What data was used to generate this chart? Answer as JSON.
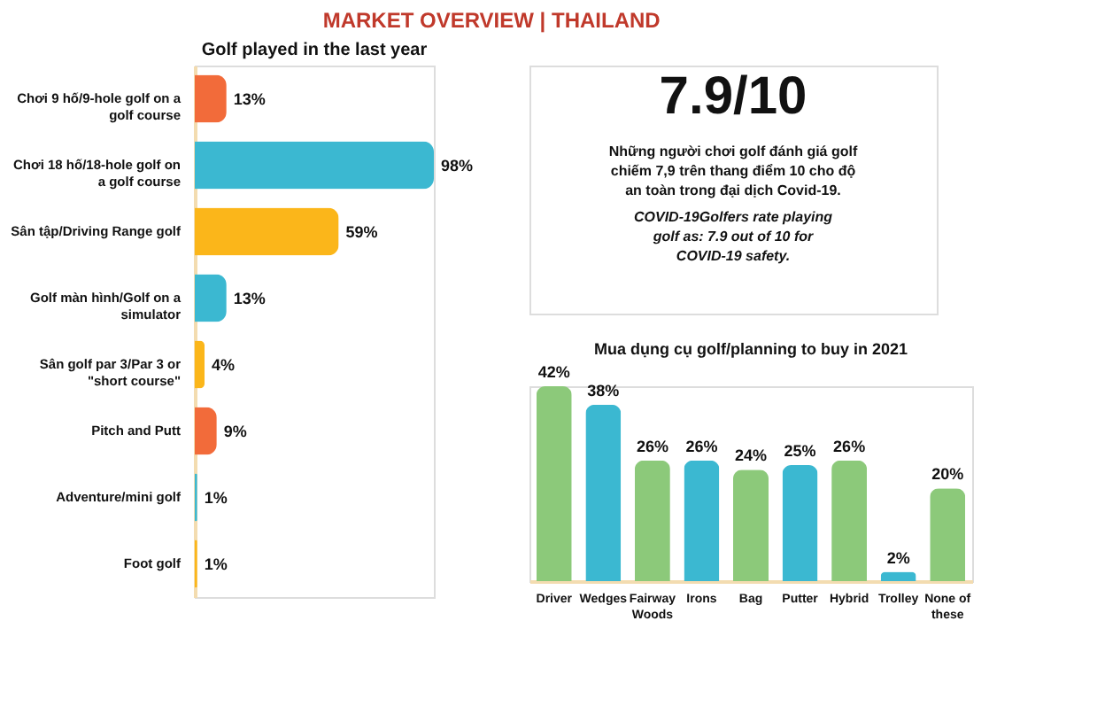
{
  "chart_data": [
    {
      "type": "other",
      "title": "MARKET OVERVIEW | THAILAND"
    },
    {
      "type": "bar",
      "orientation": "horizontal",
      "title": "Golf played in the last year",
      "categories": [
        "Chơi 9 hố/9-hole golf on a golf course",
        "Chơi 18 hố/18-hole golf on a golf course",
        "Sân tập/Driving Range golf",
        "Golf màn hình/Golf on a simulator",
        "Sân golf par 3/Par 3 or \"short course\"",
        "Pitch and Putt",
        "Adventure/mini golf",
        "Foot golf"
      ],
      "values": [
        13,
        98,
        59,
        13,
        4,
        9,
        1,
        1
      ],
      "colors": [
        "#f26b3a",
        "#3bb8d1",
        "#fbb61a",
        "#3bb8d1",
        "#fbb61a",
        "#f26b3a",
        "#3bb8d1",
        "#fbb61a"
      ],
      "value_labels": [
        "13%",
        "98%",
        "59%",
        "13%",
        "4%",
        "9%",
        "1%",
        "1%"
      ]
    },
    {
      "type": "other",
      "title": "7.9/10",
      "annotations": [
        "Những người chơi golf đánh giá golf chiếm 7,9 trên thang điểm 10 cho độ an toàn trong đại dịch Covid-19.",
        "COVID-19Golfers rate playing golf as: 7.9 out of 10 for COVID-19 safety."
      ]
    },
    {
      "type": "bar",
      "title": "Mua dụng cụ golf/planning to buy in 2021",
      "categories": [
        "Driver",
        "Wedges",
        "Fairway Woods",
        "Irons",
        "Bag",
        "Putter",
        "Hybrid",
        "Trolley",
        "None of these"
      ],
      "values": [
        42,
        38,
        26,
        26,
        24,
        25,
        26,
        2,
        20
      ],
      "colors": [
        "#8cc97a",
        "#3bb8d1",
        "#8cc97a",
        "#3bb8d1",
        "#8cc97a",
        "#3bb8d1",
        "#8cc97a",
        "#3bb8d1",
        "#8cc97a"
      ],
      "value_labels": [
        "42%",
        "38%",
        "26%",
        "26%",
        "24%",
        "25%",
        "26%",
        "2%",
        "20%"
      ]
    }
  ]
}
